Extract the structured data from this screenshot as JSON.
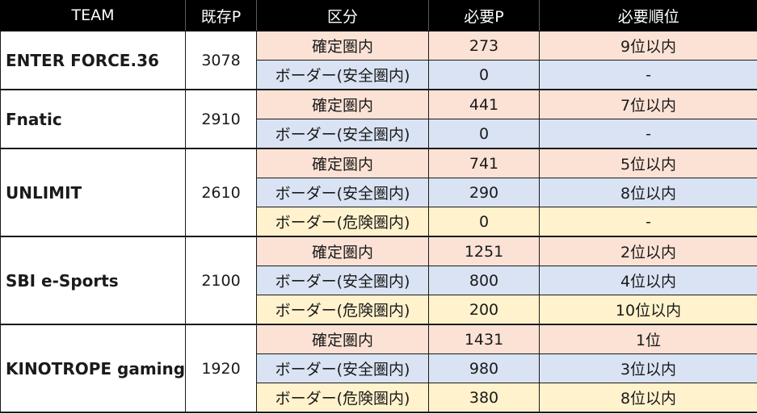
{
  "header": {
    "team": "TEAM",
    "existing_points": "既存P",
    "category": "区分",
    "required_points": "必要P",
    "required_rank": "必要順位"
  },
  "colors": {
    "header_bg": "#000000",
    "confirmed_bg": "#fbe2d5",
    "safe_border_bg": "#dae3f3",
    "danger_border_bg": "#fff2cc"
  },
  "teams": [
    {
      "name": "ENTER FORCE.36",
      "points": "3078",
      "rows": [
        {
          "category": "確定圏内",
          "required_points": "273",
          "required_rank": "9位以内",
          "type": "confirmed"
        },
        {
          "category": "ボーダー(安全圏内)",
          "required_points": "0",
          "required_rank": "-",
          "type": "safe"
        }
      ]
    },
    {
      "name": "Fnatic",
      "points": "2910",
      "rows": [
        {
          "category": "確定圏内",
          "required_points": "441",
          "required_rank": "7位以内",
          "type": "confirmed"
        },
        {
          "category": "ボーダー(安全圏内)",
          "required_points": "0",
          "required_rank": "-",
          "type": "safe"
        }
      ]
    },
    {
      "name": "UNLIMIT",
      "points": "2610",
      "rows": [
        {
          "category": "確定圏内",
          "required_points": "741",
          "required_rank": "5位以内",
          "type": "confirmed"
        },
        {
          "category": "ボーダー(安全圏内)",
          "required_points": "290",
          "required_rank": "8位以内",
          "type": "safe"
        },
        {
          "category": "ボーダー(危険圏内)",
          "required_points": "0",
          "required_rank": "-",
          "type": "danger"
        }
      ]
    },
    {
      "name": "SBI e-Sports",
      "points": "2100",
      "rows": [
        {
          "category": "確定圏内",
          "required_points": "1251",
          "required_rank": "2位以内",
          "type": "confirmed"
        },
        {
          "category": "ボーダー(安全圏内)",
          "required_points": "800",
          "required_rank": "4位以内",
          "type": "safe"
        },
        {
          "category": "ボーダー(危険圏内)",
          "required_points": "200",
          "required_rank": "10位以内",
          "type": "danger"
        }
      ]
    },
    {
      "name": "KINOTROPE gaming",
      "points": "1920",
      "rows": [
        {
          "category": "確定圏内",
          "required_points": "1431",
          "required_rank": "1位",
          "type": "confirmed"
        },
        {
          "category": "ボーダー(安全圏内)",
          "required_points": "980",
          "required_rank": "3位以内",
          "type": "safe"
        },
        {
          "category": "ボーダー(危険圏内)",
          "required_points": "380",
          "required_rank": "8位以内",
          "type": "danger"
        }
      ]
    }
  ]
}
